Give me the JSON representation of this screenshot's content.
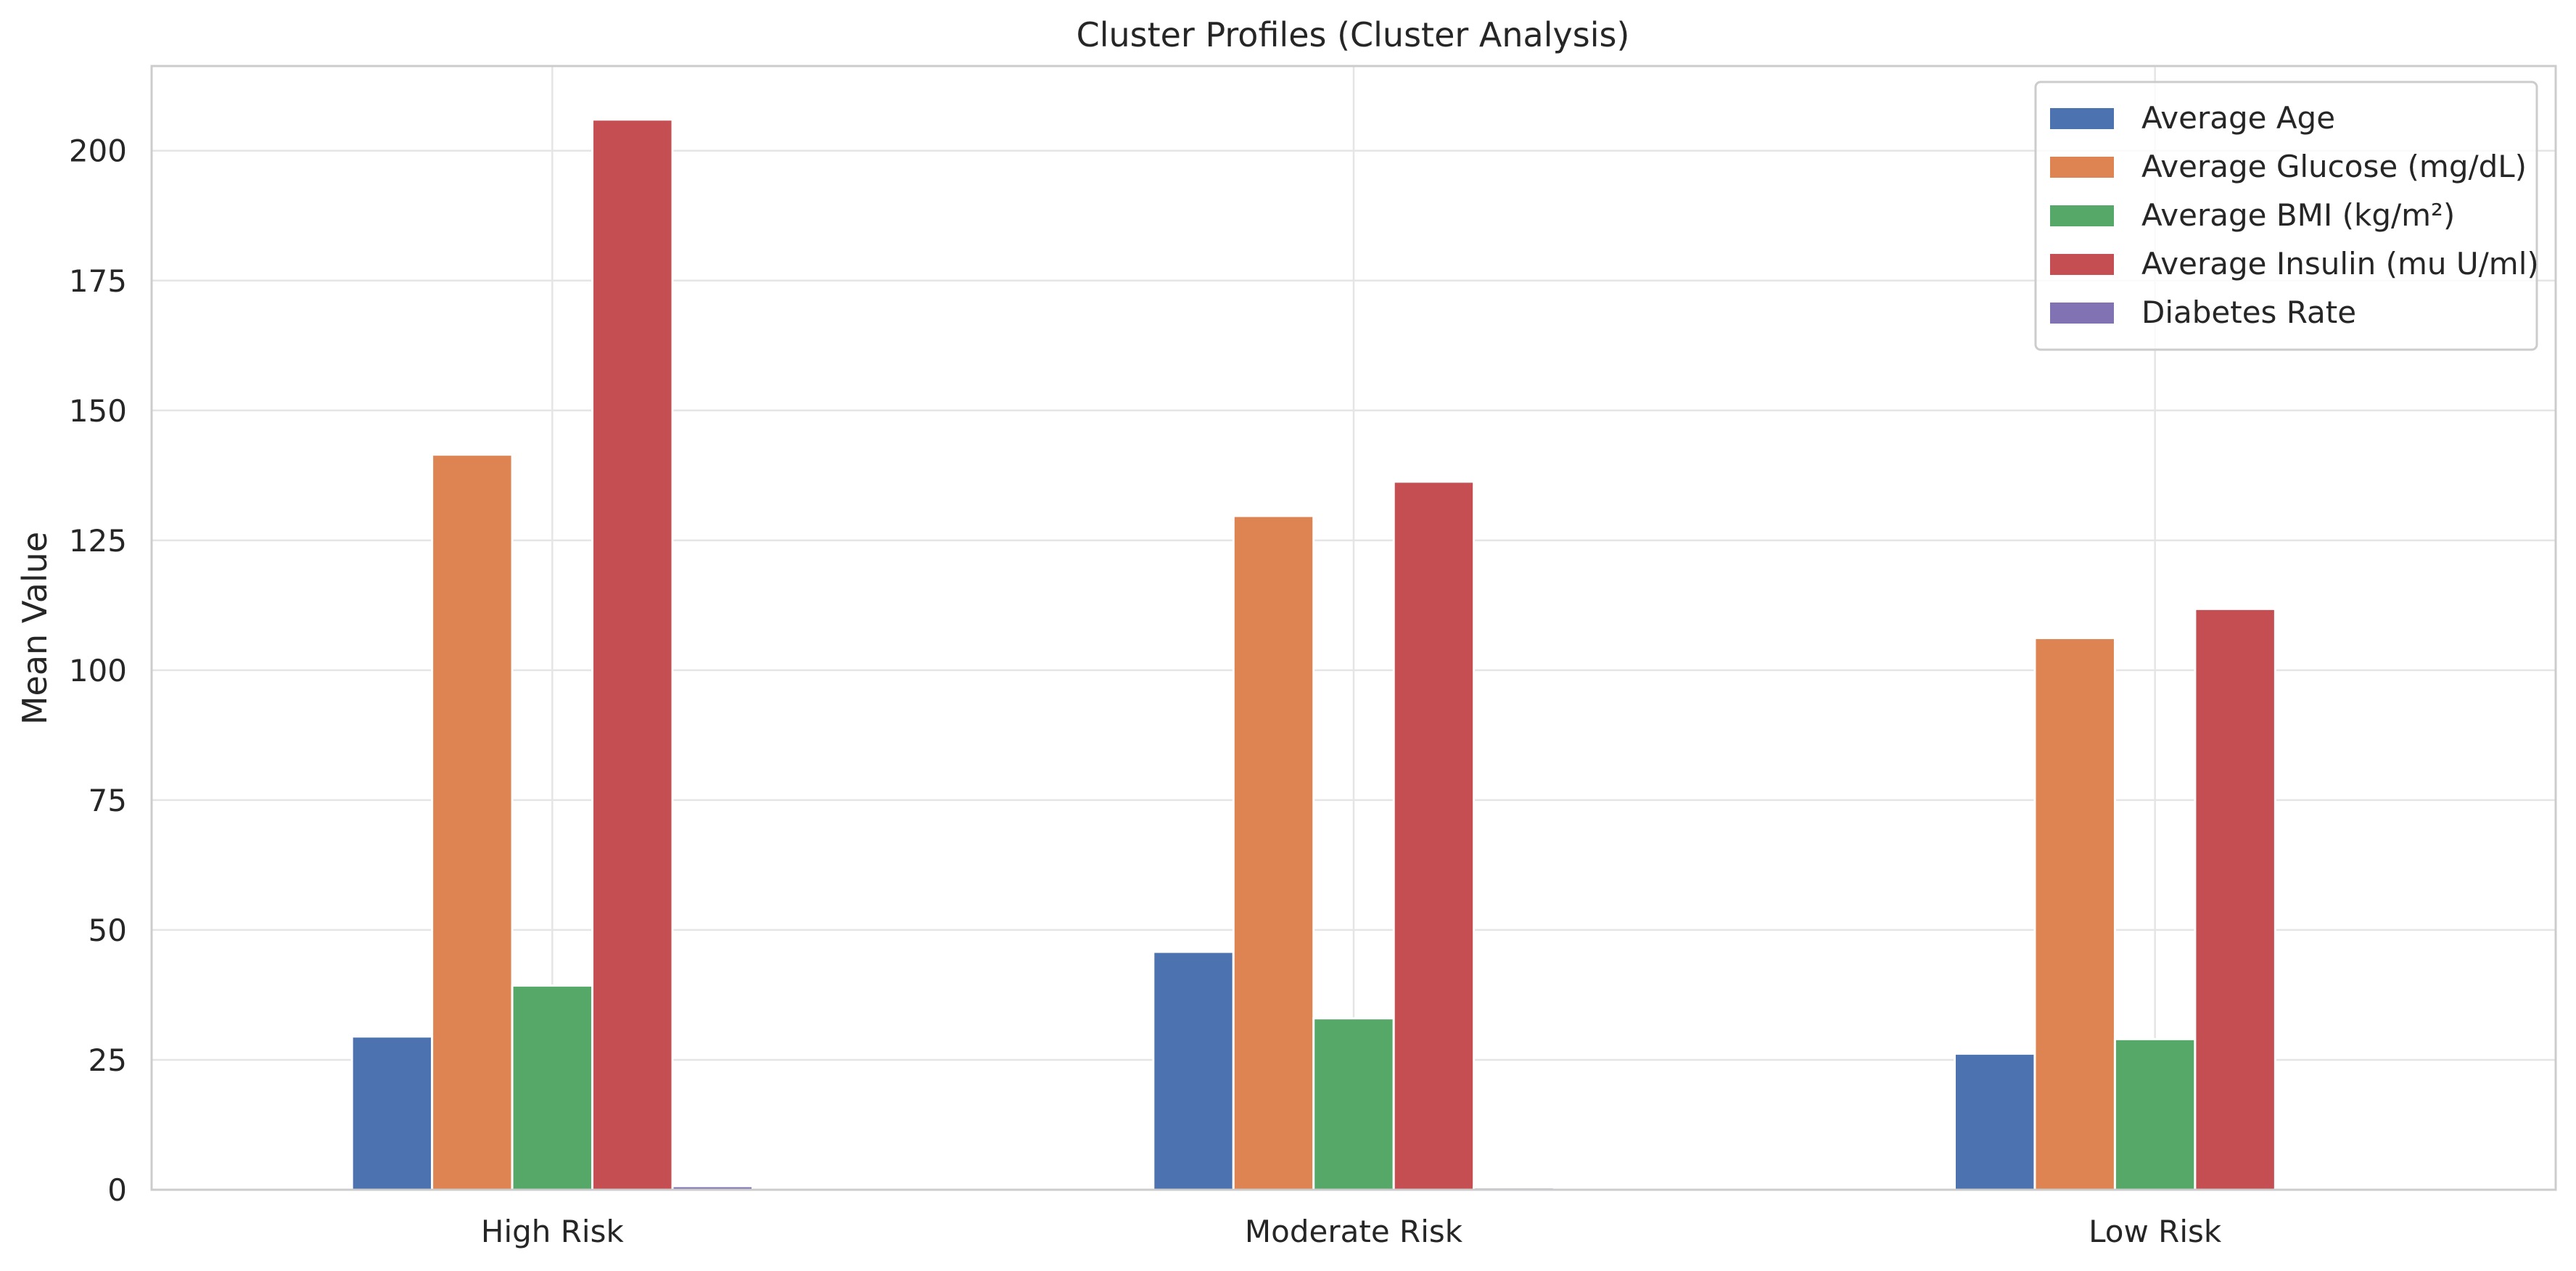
{
  "chart_data": {
    "type": "bar",
    "title": "Cluster Profiles (Cluster Analysis)",
    "xlabel": "",
    "ylabel": "Mean Value",
    "categories": [
      "High Risk",
      "Moderate Risk",
      "Low Risk"
    ],
    "series": [
      {
        "name": "Average Age",
        "values": [
          29.5,
          45.8,
          26.2
        ],
        "color": "#4c72b0"
      },
      {
        "name": "Average Glucose (mg/dL)",
        "values": [
          141.5,
          129.7,
          106.2
        ],
        "color": "#dd8452"
      },
      {
        "name": "Average BMI (kg/m²)",
        "values": [
          39.3,
          33.0,
          29.0
        ],
        "color": "#55a868"
      },
      {
        "name": "Average Insulin (mu U/ml)",
        "values": [
          206.0,
          136.3,
          111.8
        ],
        "color": "#c44e52"
      },
      {
        "name": "Diabetes Rate",
        "values": [
          0.7,
          0.45,
          0.15
        ],
        "color": "#8172b3"
      }
    ],
    "yticks": [
      0,
      25,
      50,
      75,
      100,
      125,
      150,
      175,
      200
    ],
    "ylim": [
      0,
      216.3
    ],
    "grid": true,
    "legend": "top-right"
  }
}
